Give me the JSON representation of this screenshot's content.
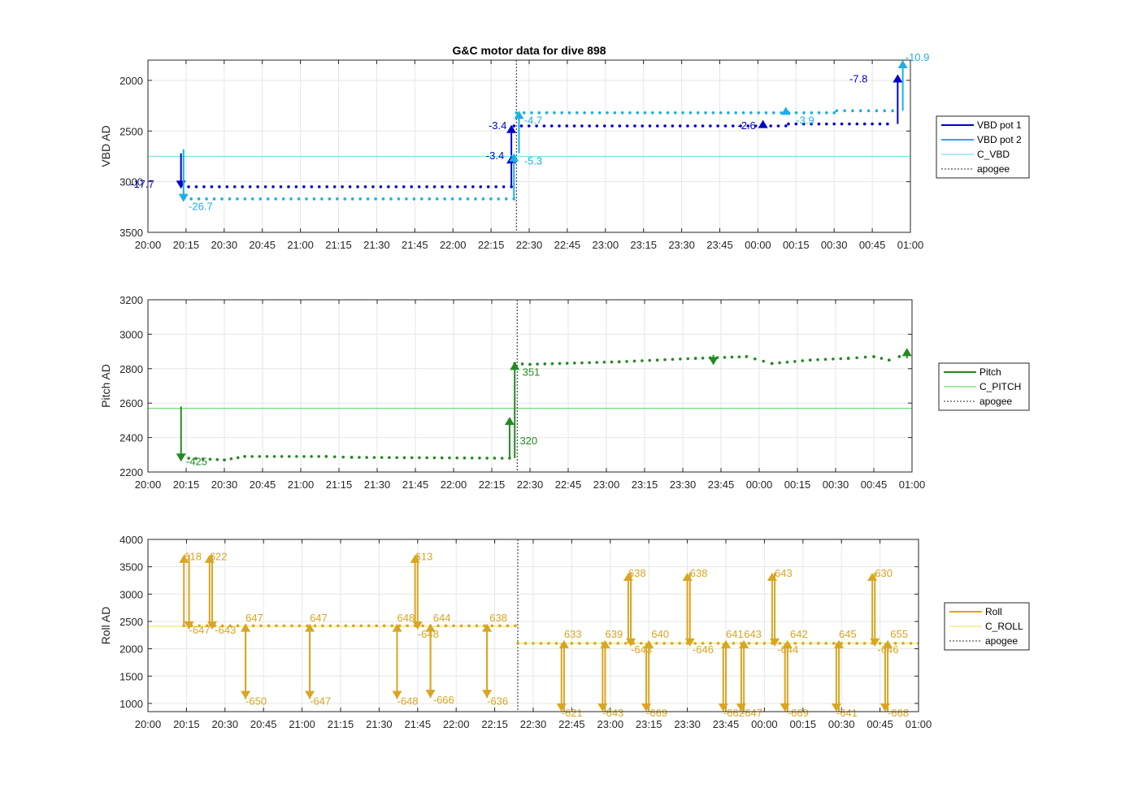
{
  "title": "G&C motor data for dive 898",
  "colors": {
    "vbd1": "#0000CD",
    "vbd2": "#1EAFE6",
    "c_vbd": "#7FE0E8",
    "pitch": "#228B22",
    "c_pitch": "#66DD66",
    "roll": "#DAA520",
    "c_roll": "#F2E86A",
    "apogee": "#555555"
  },
  "chart_data": [
    {
      "id": "vbd",
      "type": "line",
      "ylabel": "VBD AD",
      "ylim": [
        3500,
        1800
      ],
      "y_reversed": true,
      "yticks": [
        2000,
        2500,
        3000,
        3500
      ],
      "xlim": [
        0,
        300
      ],
      "xtick_labels": [
        "20:00",
        "20:15",
        "20:30",
        "20:45",
        "21:00",
        "21:15",
        "21:30",
        "21:45",
        "22:00",
        "22:15",
        "22:30",
        "22:45",
        "23:00",
        "23:15",
        "23:30",
        "23:45",
        "00:00",
        "00:15",
        "00:30",
        "00:45",
        "01:00"
      ],
      "grid": true,
      "legend_position": "right",
      "legend": [
        "VBD pot 1",
        "VBD pot 2",
        "C_VBD",
        "apogee"
      ],
      "apogee_x": 145,
      "c_line_y": 2750,
      "series": [
        {
          "name": "VBD pot 1",
          "color_key": "vbd1",
          "segments": [
            [
              16,
              3050
            ],
            [
              143,
              3050
            ],
            [
              144,
              2450
            ],
            [
              251,
              2450
            ],
            [
              252,
              2430
            ],
            [
              291,
              2430
            ]
          ]
        },
        {
          "name": "VBD pot 2",
          "color_key": "vbd2",
          "segments": [
            [
              17,
              3170
            ],
            [
              144,
              3170
            ],
            [
              145,
              2320
            ],
            [
              270,
              2320
            ],
            [
              271,
              2300
            ],
            [
              293,
              2300
            ]
          ]
        }
      ],
      "arrows": [
        {
          "x": 13,
          "y1": 2720,
          "y2": 3070,
          "color_key": "vbd1",
          "label": "-17.7",
          "lx": -7,
          "ly": 3060
        },
        {
          "x": 14,
          "y1": 2680,
          "y2": 3200,
          "color_key": "vbd2",
          "label": "-26.7",
          "lx": 16,
          "ly": 3280
        },
        {
          "x": 143,
          "y1": 3050,
          "y2": 2740,
          "color_key": "vbd1",
          "label": "-3.4",
          "lx": 133,
          "ly": 2780
        },
        {
          "x": 143,
          "y1": 2740,
          "y2": 2440,
          "color_key": "vbd1",
          "label": "-3.4",
          "lx": 134,
          "ly": 2480
        },
        {
          "x": 144,
          "y1": 3170,
          "y2": 2720,
          "color_key": "vbd2",
          "label": "-5.3",
          "lx": 148,
          "ly": 2830
        },
        {
          "x": 146,
          "y1": 2720,
          "y2": 2300,
          "color_key": "vbd2",
          "label": "-4.7",
          "lx": 148,
          "ly": 2430
        },
        {
          "x": 242,
          "y1": 2450,
          "y2": 2390,
          "color_key": "vbd1",
          "label": "-2.6",
          "lx": 232,
          "ly": 2480
        },
        {
          "x": 251,
          "y1": 2320,
          "y2": 2260,
          "color_key": "vbd2",
          "label": "-3.9",
          "lx": 255,
          "ly": 2430
        },
        {
          "x": 295,
          "y1": 2430,
          "y2": 1940,
          "color_key": "vbd1",
          "label": "-7.8",
          "lx": 276,
          "ly": 2020
        },
        {
          "x": 297,
          "y1": 2300,
          "y2": 1800,
          "color_key": "vbd2",
          "label": "-10.9",
          "lx": 298,
          "ly": 1810
        }
      ]
    },
    {
      "id": "pitch",
      "type": "line",
      "ylabel": "Pitch AD",
      "ylim": [
        2200,
        3200
      ],
      "yticks": [
        2200,
        2400,
        2600,
        2800,
        3000,
        3200
      ],
      "xlim": [
        0,
        300
      ],
      "xtick_labels": [
        "20:00",
        "20:15",
        "20:30",
        "20:45",
        "21:00",
        "21:15",
        "21:30",
        "21:45",
        "22:00",
        "22:15",
        "22:30",
        "22:45",
        "23:00",
        "23:15",
        "23:30",
        "23:45",
        "00:00",
        "00:15",
        "00:30",
        "00:45",
        "01:00"
      ],
      "grid": true,
      "legend_position": "right",
      "legend": [
        "Pitch",
        "C_PITCH",
        "apogee"
      ],
      "apogee_x": 145,
      "c_line_y": 2570,
      "series": [
        {
          "name": "Pitch",
          "color_key": "pitch",
          "segments": [
            [
              16,
              2280
            ],
            [
              30,
              2270
            ],
            [
              38,
              2290
            ],
            [
              70,
              2290
            ],
            [
              80,
              2285
            ],
            [
              142,
              2280
            ],
            [
              143,
              2510
            ],
            [
              144,
              2830
            ],
            [
              150,
              2825
            ],
            [
              185,
              2840
            ],
            [
              215,
              2860
            ],
            [
              235,
              2870
            ],
            [
              245,
              2830
            ],
            [
              260,
              2850
            ],
            [
              275,
              2860
            ],
            [
              285,
              2870
            ],
            [
              291,
              2850
            ],
            [
              295,
              2870
            ]
          ]
        }
      ],
      "arrows": [
        {
          "x": 13,
          "y1": 2580,
          "y2": 2260,
          "color_key": "pitch",
          "label": "-425",
          "lx": 15,
          "ly": 2240
        },
        {
          "x": 142,
          "y1": 2280,
          "y2": 2520,
          "color_key": "pitch",
          "label": "320",
          "lx": 146,
          "ly": 2360
        },
        {
          "x": 144,
          "y1": 2280,
          "y2": 2840,
          "color_key": "pitch",
          "label": "351",
          "lx": 147,
          "ly": 2760
        },
        {
          "x": 222,
          "y1": 2880,
          "y2": 2820,
          "color_key": "pitch",
          "label": "",
          "lx": 0,
          "ly": 0
        },
        {
          "x": 298,
          "y1": 2860,
          "y2": 2920,
          "color_key": "pitch",
          "label": "",
          "lx": 0,
          "ly": 0
        }
      ]
    },
    {
      "id": "roll",
      "type": "line",
      "ylabel": "Roll AD",
      "ylim": [
        850,
        4000
      ],
      "yticks": [
        1000,
        1500,
        2000,
        2500,
        3000,
        3500,
        4000
      ],
      "xlim": [
        0,
        300
      ],
      "xtick_labels": [
        "20:00",
        "20:15",
        "20:30",
        "20:45",
        "21:00",
        "21:15",
        "21:30",
        "21:45",
        "22:00",
        "22:15",
        "22:30",
        "22:45",
        "23:00",
        "23:15",
        "23:30",
        "23:45",
        "00:00",
        "00:15",
        "00:30",
        "00:45",
        "01:00"
      ],
      "grid": true,
      "legend_position": "right",
      "legend": [
        "Roll",
        "C_ROLL",
        "apogee"
      ],
      "apogee_x": 144,
      "c_line_y": [
        2410,
        2100
      ],
      "series": [
        {
          "name": "Roll",
          "color_key": "roll",
          "segments": [
            [
              14,
              2420
            ],
            [
              143,
              2420
            ],
            [
              144,
              2100
            ],
            [
              300,
              2100
            ]
          ]
        }
      ],
      "arrows": [
        {
          "x": 14,
          "y1": 2420,
          "y2": 3720,
          "color_key": "roll",
          "label": "618",
          "lx": 14,
          "ly": 3620
        },
        {
          "x": 16,
          "y1": 3720,
          "y2": 2350,
          "color_key": "roll",
          "label": "-647",
          "lx": 16,
          "ly": 2280
        },
        {
          "x": 24,
          "y1": 2420,
          "y2": 3720,
          "color_key": "roll",
          "label": "622",
          "lx": 24,
          "ly": 3620
        },
        {
          "x": 25,
          "y1": 3720,
          "y2": 2350,
          "color_key": "roll",
          "label": "-643",
          "lx": 26,
          "ly": 2280
        },
        {
          "x": 38,
          "y1": 2420,
          "y2": 1080,
          "color_key": "roll",
          "label": "-650",
          "lx": 38,
          "ly": 980
        },
        {
          "x": 38,
          "y1": 1080,
          "y2": 2460,
          "color_key": "roll",
          "label": "647",
          "lx": 38,
          "ly": 2500
        },
        {
          "x": 63,
          "y1": 2420,
          "y2": 1080,
          "color_key": "roll",
          "label": "-647",
          "lx": 63,
          "ly": 980
        },
        {
          "x": 63,
          "y1": 1080,
          "y2": 2460,
          "color_key": "roll",
          "label": "647",
          "lx": 63,
          "ly": 2500
        },
        {
          "x": 97,
          "y1": 2420,
          "y2": 1080,
          "color_key": "roll",
          "label": "-648",
          "lx": 97,
          "ly": 980
        },
        {
          "x": 97,
          "y1": 1080,
          "y2": 2460,
          "color_key": "roll",
          "label": "648",
          "lx": 97,
          "ly": 2500
        },
        {
          "x": 104,
          "y1": 2420,
          "y2": 3720,
          "color_key": "roll",
          "label": "613",
          "lx": 104,
          "ly": 3620
        },
        {
          "x": 105,
          "y1": 3720,
          "y2": 2350,
          "color_key": "roll",
          "label": "-648",
          "lx": 105,
          "ly": 2200
        },
        {
          "x": 110,
          "y1": 2420,
          "y2": 1100,
          "color_key": "roll",
          "label": "-666",
          "lx": 111,
          "ly": 1000
        },
        {
          "x": 110,
          "y1": 1100,
          "y2": 2460,
          "color_key": "roll",
          "label": "644",
          "lx": 111,
          "ly": 2500
        },
        {
          "x": 132,
          "y1": 2420,
          "y2": 1100,
          "color_key": "roll",
          "label": "-636",
          "lx": 132,
          "ly": 980
        },
        {
          "x": 132,
          "y1": 1100,
          "y2": 2460,
          "color_key": "roll",
          "label": "638",
          "lx": 133,
          "ly": 2500
        },
        {
          "x": 161,
          "y1": 2100,
          "y2": 850,
          "color_key": "roll",
          "label": "-621",
          "lx": 161,
          "ly": 760
        },
        {
          "x": 162,
          "y1": 850,
          "y2": 2160,
          "color_key": "roll",
          "label": "633",
          "lx": 162,
          "ly": 2200
        },
        {
          "x": 177,
          "y1": 2100,
          "y2": 850,
          "color_key": "roll",
          "label": "-643",
          "lx": 177,
          "ly": 760
        },
        {
          "x": 178,
          "y1": 850,
          "y2": 2160,
          "color_key": "roll",
          "label": "639",
          "lx": 178,
          "ly": 2200
        },
        {
          "x": 187,
          "y1": 2100,
          "y2": 3390,
          "color_key": "roll",
          "label": "638",
          "lx": 187,
          "ly": 3320
        },
        {
          "x": 188,
          "y1": 3390,
          "y2": 2040,
          "color_key": "roll",
          "label": "-643",
          "lx": 188,
          "ly": 1920
        },
        {
          "x": 194,
          "y1": 2100,
          "y2": 850,
          "color_key": "roll",
          "label": "-669",
          "lx": 194,
          "ly": 760
        },
        {
          "x": 195,
          "y1": 850,
          "y2": 2160,
          "color_key": "roll",
          "label": "640",
          "lx": 196,
          "ly": 2200
        },
        {
          "x": 210,
          "y1": 2100,
          "y2": 3390,
          "color_key": "roll",
          "label": "638",
          "lx": 211,
          "ly": 3320
        },
        {
          "x": 211,
          "y1": 3390,
          "y2": 2040,
          "color_key": "roll",
          "label": "-646",
          "lx": 212,
          "ly": 1920
        },
        {
          "x": 224,
          "y1": 2100,
          "y2": 850,
          "color_key": "roll",
          "label": "-662",
          "lx": 224,
          "ly": 760
        },
        {
          "x": 225,
          "y1": 850,
          "y2": 2160,
          "color_key": "roll",
          "label": "641",
          "lx": 225,
          "ly": 2200
        },
        {
          "x": 231,
          "y1": 2100,
          "y2": 850,
          "color_key": "roll",
          "label": "-647",
          "lx": 231,
          "ly": 760
        },
        {
          "x": 232,
          "y1": 850,
          "y2": 2160,
          "color_key": "roll",
          "label": "643",
          "lx": 232,
          "ly": 2200
        },
        {
          "x": 243,
          "y1": 2100,
          "y2": 3390,
          "color_key": "roll",
          "label": "643",
          "lx": 244,
          "ly": 3320
        },
        {
          "x": 244,
          "y1": 3390,
          "y2": 2040,
          "color_key": "roll",
          "label": "-644",
          "lx": 245,
          "ly": 1920
        },
        {
          "x": 248,
          "y1": 2100,
          "y2": 850,
          "color_key": "roll",
          "label": "-669",
          "lx": 249,
          "ly": 760
        },
        {
          "x": 249,
          "y1": 850,
          "y2": 2160,
          "color_key": "roll",
          "label": "642",
          "lx": 250,
          "ly": 2200
        },
        {
          "x": 268,
          "y1": 2100,
          "y2": 850,
          "color_key": "roll",
          "label": "-641",
          "lx": 268,
          "ly": 760
        },
        {
          "x": 269,
          "y1": 850,
          "y2": 2160,
          "color_key": "roll",
          "label": "645",
          "lx": 269,
          "ly": 2200
        },
        {
          "x": 282,
          "y1": 2100,
          "y2": 3390,
          "color_key": "roll",
          "label": "630",
          "lx": 283,
          "ly": 3320
        },
        {
          "x": 283,
          "y1": 3390,
          "y2": 2040,
          "color_key": "roll",
          "label": "-646",
          "lx": 284,
          "ly": 1920
        },
        {
          "x": 287,
          "y1": 2100,
          "y2": 850,
          "color_key": "roll",
          "label": "-668",
          "lx": 288,
          "ly": 760
        },
        {
          "x": 288,
          "y1": 850,
          "y2": 2160,
          "color_key": "roll",
          "label": "655",
          "lx": 289,
          "ly": 2200
        }
      ]
    }
  ]
}
